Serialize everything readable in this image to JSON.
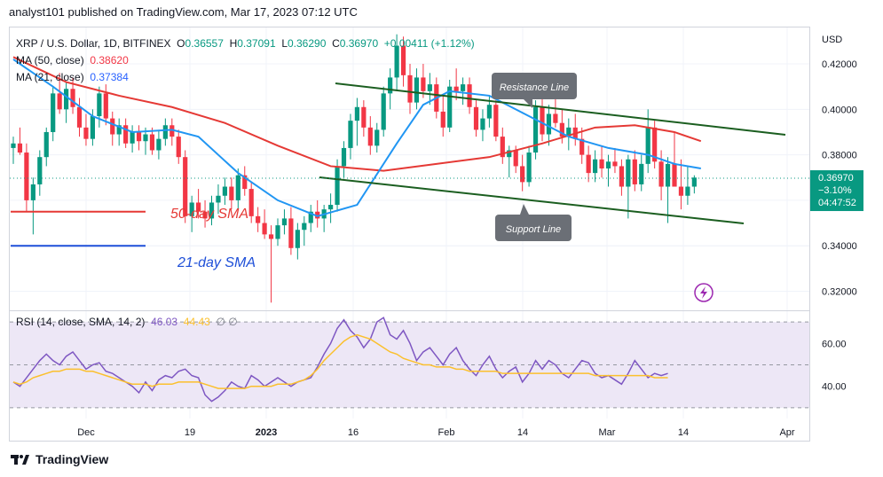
{
  "header": {
    "text": "analyst101 published on TradingView.com, Mar 17, 2023 07:12 UTC"
  },
  "legend": {
    "symbol": "XRP / U.S. Dollar, 1D, BITFINEX",
    "open_label": "O",
    "open": "0.36557",
    "high_label": "H",
    "high": "0.37091",
    "low_label": "L",
    "low": "0.36290",
    "close_label": "C",
    "close": "0.36970",
    "change": "+0.00411 (+1.12%)",
    "ma50_label": "MA (50, close)",
    "ma50": "0.38620",
    "ma21_label": "MA (21, close)",
    "ma21": "0.37384"
  },
  "price_axis": {
    "currency": "USD",
    "ticks": [
      "0.42000",
      "0.40000",
      "0.38000",
      "0.34000",
      "0.32000"
    ],
    "last_price": "0.36970",
    "last_change": "−3.10%",
    "countdown": "04:47:52"
  },
  "rsi": {
    "label": "RSI (14, close, SMA, 14, 2)",
    "value": "46.03",
    "sma": "44.43",
    "extra": "∅ ∅",
    "ticks": [
      "60.00",
      "40.00"
    ]
  },
  "time_axis": {
    "ticks": [
      "Dec",
      "19",
      "2023",
      "16",
      "Feb",
      "14",
      "Mar",
      "14",
      "Apr"
    ]
  },
  "annotations": {
    "resistance": "Resistance Line",
    "support": "Support Line",
    "sma50": "50-day SMA",
    "sma21": "21-day SMA"
  },
  "footer": {
    "brand": "TradingView"
  },
  "colors": {
    "up": "#089981",
    "down": "#f23645",
    "ma50": "#e53935",
    "ma21": "#2196f3",
    "rsi": "#7e57c2",
    "rsi_sma": "#fbc02d",
    "channel": "#1b5e20",
    "rsi_band": "#ede7f6"
  },
  "chart_data": {
    "type": "candlestick",
    "price_range": [
      0.312,
      0.436
    ],
    "rsi_range": [
      25,
      75
    ],
    "candles": [
      [
        0.383,
        0.388,
        0.376,
        0.385
      ],
      [
        0.385,
        0.392,
        0.38,
        0.381
      ],
      [
        0.381,
        0.385,
        0.355,
        0.36
      ],
      [
        0.36,
        0.37,
        0.345,
        0.367
      ],
      [
        0.367,
        0.382,
        0.362,
        0.379
      ],
      [
        0.379,
        0.392,
        0.375,
        0.39
      ],
      [
        0.39,
        0.41,
        0.386,
        0.407
      ],
      [
        0.407,
        0.416,
        0.398,
        0.4
      ],
      [
        0.4,
        0.412,
        0.394,
        0.409
      ],
      [
        0.409,
        0.414,
        0.398,
        0.401
      ],
      [
        0.401,
        0.405,
        0.388,
        0.392
      ],
      [
        0.392,
        0.398,
        0.384,
        0.387
      ],
      [
        0.387,
        0.4,
        0.384,
        0.397
      ],
      [
        0.397,
        0.41,
        0.392,
        0.407
      ],
      [
        0.407,
        0.411,
        0.393,
        0.396
      ],
      [
        0.396,
        0.399,
        0.384,
        0.389
      ],
      [
        0.389,
        0.396,
        0.384,
        0.393
      ],
      [
        0.393,
        0.396,
        0.383,
        0.385
      ],
      [
        0.385,
        0.393,
        0.381,
        0.39
      ],
      [
        0.39,
        0.393,
        0.382,
        0.386
      ],
      [
        0.386,
        0.392,
        0.38,
        0.389
      ],
      [
        0.389,
        0.392,
        0.38,
        0.382
      ],
      [
        0.382,
        0.391,
        0.378,
        0.387
      ],
      [
        0.387,
        0.396,
        0.384,
        0.393
      ],
      [
        0.393,
        0.396,
        0.384,
        0.388
      ],
      [
        0.388,
        0.391,
        0.376,
        0.379
      ],
      [
        0.379,
        0.382,
        0.35,
        0.353
      ],
      [
        0.353,
        0.362,
        0.346,
        0.359
      ],
      [
        0.359,
        0.365,
        0.352,
        0.355
      ],
      [
        0.355,
        0.36,
        0.348,
        0.352
      ],
      [
        0.352,
        0.362,
        0.349,
        0.359
      ],
      [
        0.359,
        0.367,
        0.354,
        0.362
      ],
      [
        0.362,
        0.37,
        0.358,
        0.366
      ],
      [
        0.366,
        0.37,
        0.356,
        0.36
      ],
      [
        0.36,
        0.374,
        0.356,
        0.371
      ],
      [
        0.371,
        0.375,
        0.362,
        0.365
      ],
      [
        0.365,
        0.368,
        0.35,
        0.353
      ],
      [
        0.353,
        0.357,
        0.346,
        0.35
      ],
      [
        0.35,
        0.356,
        0.343,
        0.345
      ],
      [
        0.345,
        0.349,
        0.315,
        0.343
      ],
      [
        0.343,
        0.352,
        0.34,
        0.349
      ],
      [
        0.349,
        0.356,
        0.345,
        0.352
      ],
      [
        0.352,
        0.357,
        0.336,
        0.339
      ],
      [
        0.339,
        0.35,
        0.334,
        0.347
      ],
      [
        0.347,
        0.353,
        0.34,
        0.35
      ],
      [
        0.35,
        0.358,
        0.346,
        0.355
      ],
      [
        0.355,
        0.36,
        0.348,
        0.352
      ],
      [
        0.352,
        0.358,
        0.346,
        0.356
      ],
      [
        0.356,
        0.363,
        0.35,
        0.358
      ],
      [
        0.358,
        0.378,
        0.355,
        0.375
      ],
      [
        0.375,
        0.386,
        0.37,
        0.383
      ],
      [
        0.383,
        0.398,
        0.378,
        0.395
      ],
      [
        0.395,
        0.405,
        0.384,
        0.401
      ],
      [
        0.401,
        0.404,
        0.388,
        0.392
      ],
      [
        0.392,
        0.397,
        0.38,
        0.384
      ],
      [
        0.384,
        0.394,
        0.381,
        0.391
      ],
      [
        0.391,
        0.41,
        0.388,
        0.407
      ],
      [
        0.407,
        0.418,
        0.4,
        0.414
      ],
      [
        0.414,
        0.433,
        0.408,
        0.428
      ],
      [
        0.428,
        0.432,
        0.41,
        0.415
      ],
      [
        0.415,
        0.42,
        0.398,
        0.403
      ],
      [
        0.403,
        0.418,
        0.4,
        0.414
      ],
      [
        0.414,
        0.42,
        0.405,
        0.408
      ],
      [
        0.408,
        0.416,
        0.402,
        0.411
      ],
      [
        0.411,
        0.414,
        0.396,
        0.399
      ],
      [
        0.399,
        0.406,
        0.388,
        0.392
      ],
      [
        0.392,
        0.413,
        0.39,
        0.41
      ],
      [
        0.41,
        0.418,
        0.404,
        0.408
      ],
      [
        0.408,
        0.414,
        0.402,
        0.411
      ],
      [
        0.411,
        0.414,
        0.398,
        0.401
      ],
      [
        0.401,
        0.404,
        0.388,
        0.391
      ],
      [
        0.391,
        0.4,
        0.386,
        0.396
      ],
      [
        0.396,
        0.406,
        0.392,
        0.402
      ],
      [
        0.402,
        0.404,
        0.386,
        0.388
      ],
      [
        0.388,
        0.392,
        0.376,
        0.379
      ],
      [
        0.379,
        0.384,
        0.37,
        0.382
      ],
      [
        0.382,
        0.384,
        0.372,
        0.375
      ],
      [
        0.375,
        0.38,
        0.364,
        0.368
      ],
      [
        0.368,
        0.384,
        0.366,
        0.381
      ],
      [
        0.381,
        0.404,
        0.378,
        0.401
      ],
      [
        0.401,
        0.405,
        0.386,
        0.389
      ],
      [
        0.389,
        0.402,
        0.384,
        0.398
      ],
      [
        0.398,
        0.408,
        0.392,
        0.394
      ],
      [
        0.394,
        0.4,
        0.385,
        0.388
      ],
      [
        0.388,
        0.396,
        0.382,
        0.392
      ],
      [
        0.392,
        0.398,
        0.384,
        0.387
      ],
      [
        0.387,
        0.392,
        0.376,
        0.38
      ],
      [
        0.38,
        0.384,
        0.368,
        0.372
      ],
      [
        0.372,
        0.382,
        0.368,
        0.378
      ],
      [
        0.378,
        0.384,
        0.37,
        0.374
      ],
      [
        0.374,
        0.38,
        0.366,
        0.377
      ],
      [
        0.377,
        0.383,
        0.372,
        0.375
      ],
      [
        0.375,
        0.378,
        0.362,
        0.366
      ],
      [
        0.366,
        0.38,
        0.352,
        0.378
      ],
      [
        0.378,
        0.382,
        0.364,
        0.367
      ],
      [
        0.367,
        0.38,
        0.364,
        0.376
      ],
      [
        0.376,
        0.4,
        0.372,
        0.392
      ],
      [
        0.392,
        0.395,
        0.374,
        0.377
      ],
      [
        0.377,
        0.382,
        0.36,
        0.366
      ],
      [
        0.366,
        0.379,
        0.35,
        0.376
      ],
      [
        0.376,
        0.39,
        0.366,
        0.366
      ],
      [
        0.366,
        0.378,
        0.356,
        0.362
      ],
      [
        0.362,
        0.375,
        0.358,
        0.366
      ],
      [
        0.366,
        0.371,
        0.363,
        0.37
      ]
    ],
    "ma50": [
      [
        0,
        0.423
      ],
      [
        8,
        0.412
      ],
      [
        16,
        0.406
      ],
      [
        24,
        0.401
      ],
      [
        32,
        0.394
      ],
      [
        40,
        0.384
      ],
      [
        48,
        0.375
      ],
      [
        56,
        0.373
      ],
      [
        64,
        0.376
      ],
      [
        72,
        0.379
      ],
      [
        80,
        0.385
      ],
      [
        88,
        0.392
      ],
      [
        94,
        0.393
      ],
      [
        100,
        0.39
      ],
      [
        104,
        0.386
      ]
    ],
    "ma21": [
      [
        0,
        0.422
      ],
      [
        6,
        0.41
      ],
      [
        12,
        0.397
      ],
      [
        18,
        0.39
      ],
      [
        24,
        0.391
      ],
      [
        28,
        0.388
      ],
      [
        34,
        0.372
      ],
      [
        40,
        0.36
      ],
      [
        46,
        0.353
      ],
      [
        52,
        0.358
      ],
      [
        58,
        0.385
      ],
      [
        62,
        0.402
      ],
      [
        66,
        0.408
      ],
      [
        72,
        0.406
      ],
      [
        78,
        0.397
      ],
      [
        84,
        0.388
      ],
      [
        90,
        0.383
      ],
      [
        96,
        0.38
      ],
      [
        100,
        0.376
      ],
      [
        104,
        0.374
      ]
    ],
    "sma50_left_level": 0.355,
    "sma21_left_level": 0.34,
    "rsi_values": [
      42,
      40,
      44,
      48,
      52,
      55,
      52,
      50,
      54,
      56,
      52,
      48,
      50,
      51,
      47,
      46,
      44,
      42,
      40,
      37,
      42,
      38,
      43,
      45,
      44,
      47,
      48,
      45,
      44,
      36,
      33,
      35,
      38,
      42,
      40,
      39,
      45,
      43,
      40,
      42,
      44,
      42,
      40,
      42,
      43,
      44,
      49,
      55,
      60,
      67,
      71,
      66,
      63,
      58,
      62,
      70,
      72,
      64,
      62,
      66,
      60,
      52,
      56,
      58,
      54,
      50,
      55,
      58,
      52,
      48,
      45,
      50,
      54,
      48,
      44,
      47,
      49,
      42,
      46,
      52,
      48,
      52,
      50,
      46,
      44,
      48,
      52,
      51,
      46,
      44,
      45,
      43,
      41,
      46,
      52,
      48,
      44,
      46,
      45,
      46
    ],
    "rsi_sma_values": [
      42,
      41,
      42,
      44,
      45,
      46,
      47,
      47,
      48,
      48,
      48,
      47,
      47,
      46,
      45,
      44,
      43,
      42,
      41,
      41,
      41,
      40,
      41,
      41,
      41,
      42,
      42,
      42,
      42,
      41,
      40,
      39,
      39,
      39,
      39,
      39,
      40,
      40,
      40,
      40,
      41,
      41,
      41,
      42,
      43,
      45,
      48,
      52,
      55,
      58,
      61,
      63,
      64,
      63,
      62,
      60,
      58,
      56,
      55,
      53,
      52,
      51,
      50,
      50,
      49,
      49,
      49,
      48,
      48,
      47,
      47,
      47,
      47,
      47,
      46,
      46,
      46,
      46,
      46,
      46,
      46,
      46,
      46,
      46,
      46,
      46,
      46,
      46,
      45,
      45,
      45,
      45,
      45,
      45,
      45,
      45,
      45,
      44,
      44,
      44
    ]
  }
}
